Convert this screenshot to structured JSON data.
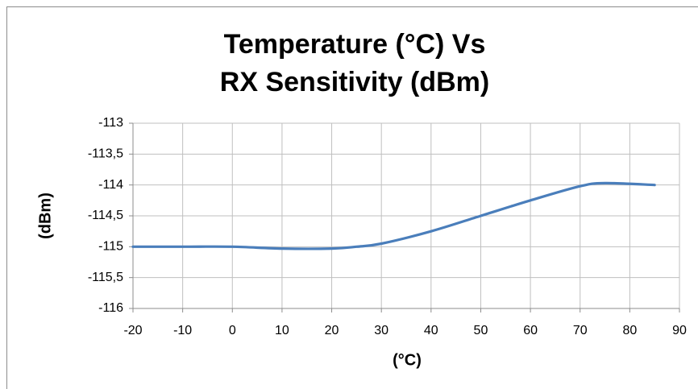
{
  "chart_data": {
    "type": "line",
    "title": [
      "Temperature (°C) Vs",
      "RX Sensitivity (dBm)"
    ],
    "x_label": "(°C)",
    "y_label": "(dBm)",
    "x": [
      -20,
      -10,
      0,
      10,
      20,
      25,
      30,
      40,
      50,
      60,
      70,
      75,
      85
    ],
    "series": [
      {
        "name": "RX Sensitivity",
        "color": "#4a7ebb",
        "values": [
          -115,
          -115,
          -115,
          -115.03,
          -115.03,
          -115,
          -114.95,
          -114.75,
          -114.5,
          -114.25,
          -114.02,
          -113.97,
          -114
        ]
      }
    ],
    "xlim": [
      -20,
      90
    ],
    "xticks": [
      -20,
      -10,
      0,
      10,
      20,
      30,
      40,
      50,
      60,
      70,
      80,
      90
    ],
    "ylim": [
      -116,
      -113
    ],
    "yticks": [
      -116,
      {
        "value": -115.5,
        "label": "-115,5"
      },
      -115,
      {
        "value": -114.5,
        "label": "-114,5"
      },
      -114,
      {
        "value": -113.5,
        "label": "-113,5"
      },
      -113
    ],
    "grid": true
  }
}
